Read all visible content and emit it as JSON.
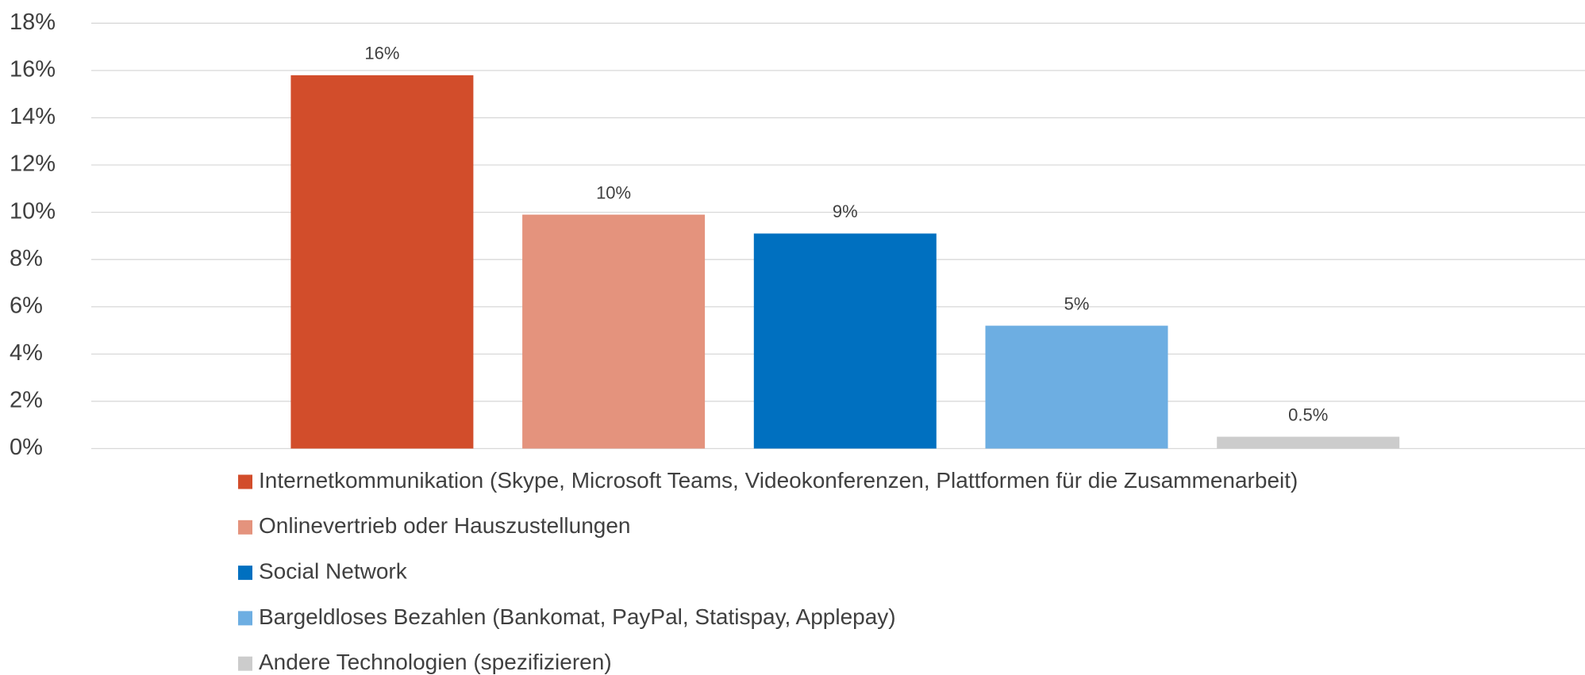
{
  "chart_data": {
    "type": "bar",
    "series": [
      {
        "name": "Internetkommunikation (Skype, Microsoft Teams, Videokonferenzen, Plattformen für die Zusammenarbeit)",
        "color": "#d24d2b",
        "values": [
          15.8
        ],
        "value_labels": [
          "16%"
        ]
      },
      {
        "name": "Onlinevertrieb oder Hauszustellungen",
        "color": "#e4937d",
        "values": [
          9.9
        ],
        "value_labels": [
          "10%"
        ]
      },
      {
        "name": "Social Network",
        "color": "#0070c0",
        "values": [
          9.1
        ],
        "value_labels": [
          "9%"
        ]
      },
      {
        "name": "Bargeldloses Bezahlen (Bankomat, PayPal, Statispay, Applepay)",
        "color": "#6daee2",
        "values": [
          5.2
        ],
        "value_labels": [
          "5%"
        ]
      },
      {
        "name": "Andere Technologien (spezifizieren)",
        "color": "#cccccc",
        "values": [
          0.5
        ],
        "value_labels": [
          "0.5%"
        ]
      }
    ],
    "ylim": [
      0,
      18
    ],
    "yticks": [
      {
        "value": 0,
        "label": "0%"
      },
      {
        "value": 2,
        "label": "2%"
      },
      {
        "value": 4,
        "label": "4%"
      },
      {
        "value": 6,
        "label": "6%"
      },
      {
        "value": 8,
        "label": "8%"
      },
      {
        "value": 10,
        "label": "10%"
      },
      {
        "value": 12,
        "label": "12%"
      },
      {
        "value": 14,
        "label": "14%"
      },
      {
        "value": 16,
        "label": "16%"
      },
      {
        "value": 18,
        "label": "18%"
      }
    ],
    "grid": true,
    "legend": "bottom"
  }
}
